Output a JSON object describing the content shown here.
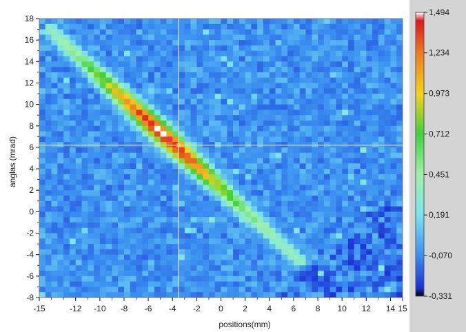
{
  "chart_data": {
    "type": "heatmap",
    "title": "",
    "xlabel": "positions(mm)",
    "ylabel": "anglas (mrad)",
    "xlim": [
      -15,
      15
    ],
    "ylim": [
      -8,
      18
    ],
    "x_ticks": [
      -15,
      -12,
      -10,
      -8,
      -6,
      -4,
      -2,
      0,
      2,
      4,
      6,
      8,
      10,
      12,
      14,
      15
    ],
    "y_ticks": [
      -8,
      -6,
      -4,
      -2,
      0,
      2,
      4,
      6,
      8,
      10,
      12,
      14,
      16,
      18
    ],
    "grid": {
      "cols": 60,
      "rows": 52
    },
    "cursor": {
      "x": -3.5,
      "y": 6.2
    },
    "colorbar": {
      "min": -0.331,
      "max": 1.494,
      "tick_labels": [
        "1,494",
        "1,234",
        "0,973",
        "0,712",
        "0,451",
        "0,191",
        "-0,070",
        "-0,331"
      ],
      "tick_values": [
        1.494,
        1.234,
        0.973,
        0.712,
        0.451,
        0.191,
        -0.07,
        -0.331
      ],
      "stops": [
        {
          "v": -0.331,
          "color": "#000000"
        },
        {
          "v": -0.28,
          "color": "#1b2fd6"
        },
        {
          "v": -0.07,
          "color": "#3a8ff0"
        },
        {
          "v": 0.191,
          "color": "#7be3ef"
        },
        {
          "v": 0.451,
          "color": "#9ff2a6"
        },
        {
          "v": 0.712,
          "color": "#3ed23a"
        },
        {
          "v": 0.973,
          "color": "#f5d31a"
        },
        {
          "v": 1.234,
          "color": "#f07a1e"
        },
        {
          "v": 1.44,
          "color": "#e0161b"
        },
        {
          "v": 1.494,
          "color": "#ffffff"
        }
      ]
    },
    "ridge": {
      "x_start": -14,
      "y_start": 16.8,
      "x_end": 6.5,
      "y_end": -4.6,
      "peak_x": -4.8,
      "peak_value": 1.48,
      "background_value": -0.1
    }
  }
}
